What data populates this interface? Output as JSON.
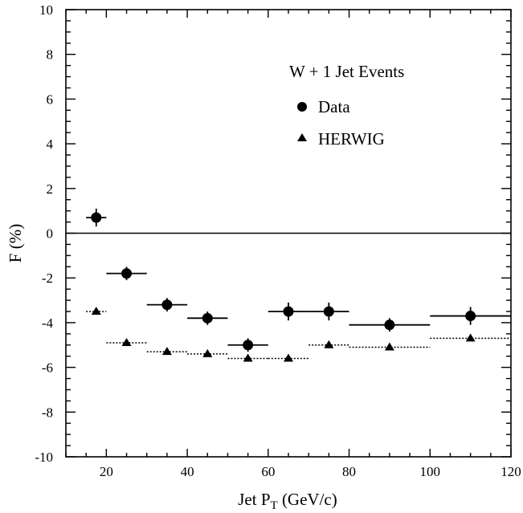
{
  "chart_data": {
    "type": "scatter",
    "title": "",
    "xlabel": "Jet P",
    "xlabel_sub": "T",
    "xlabel_units": " (GeV/c)",
    "ylabel": "F  (%)",
    "xlim": [
      10,
      120
    ],
    "ylim": [
      -10,
      10
    ],
    "x_ticks": [
      20,
      40,
      60,
      80,
      100,
      120
    ],
    "y_ticks": [
      -10,
      -8,
      -6,
      -4,
      -2,
      0,
      2,
      4,
      6,
      8,
      10
    ],
    "grid": false,
    "zero_line": true,
    "legend": {
      "title": "W + 1 Jet Events",
      "placement": "upper-right"
    },
    "series": [
      {
        "name": "Data",
        "marker": "circle",
        "color": "#000000",
        "points": [
          {
            "x": 17.5,
            "y": 0.7,
            "xerr": [
              15,
              20
            ],
            "yerr": 0.4
          },
          {
            "x": 25,
            "y": -1.8,
            "xerr": [
              20,
              30
            ],
            "yerr": 0.3
          },
          {
            "x": 35,
            "y": -3.2,
            "xerr": [
              30,
              40
            ],
            "yerr": 0.3
          },
          {
            "x": 45,
            "y": -3.8,
            "xerr": [
              40,
              50
            ],
            "yerr": 0.3
          },
          {
            "x": 55,
            "y": -5.0,
            "xerr": [
              50,
              60
            ],
            "yerr": 0.3
          },
          {
            "x": 65,
            "y": -3.5,
            "xerr": [
              60,
              70
            ],
            "yerr": 0.4
          },
          {
            "x": 75,
            "y": -3.5,
            "xerr": [
              70,
              80
            ],
            "yerr": 0.4
          },
          {
            "x": 90,
            "y": -4.1,
            "xerr": [
              80,
              100
            ],
            "yerr": 0.3
          },
          {
            "x": 110,
            "y": -3.7,
            "xerr": [
              100,
              120
            ],
            "yerr": 0.4
          }
        ]
      },
      {
        "name": "HERWIG",
        "marker": "triangle",
        "color": "#000000",
        "line_style": "dotted",
        "points": [
          {
            "x": 17.5,
            "y": -3.5,
            "xerr": [
              15,
              20
            ]
          },
          {
            "x": 25,
            "y": -4.9,
            "xerr": [
              20,
              30
            ]
          },
          {
            "x": 35,
            "y": -5.3,
            "xerr": [
              30,
              40
            ]
          },
          {
            "x": 45,
            "y": -5.4,
            "xerr": [
              40,
              50
            ]
          },
          {
            "x": 55,
            "y": -5.6,
            "xerr": [
              50,
              60
            ]
          },
          {
            "x": 65,
            "y": -5.6,
            "xerr": [
              60,
              70
            ]
          },
          {
            "x": 75,
            "y": -5.0,
            "xerr": [
              70,
              80
            ]
          },
          {
            "x": 90,
            "y": -5.1,
            "xerr": [
              80,
              100
            ]
          },
          {
            "x": 110,
            "y": -4.7,
            "xerr": [
              100,
              120
            ]
          }
        ]
      }
    ]
  }
}
